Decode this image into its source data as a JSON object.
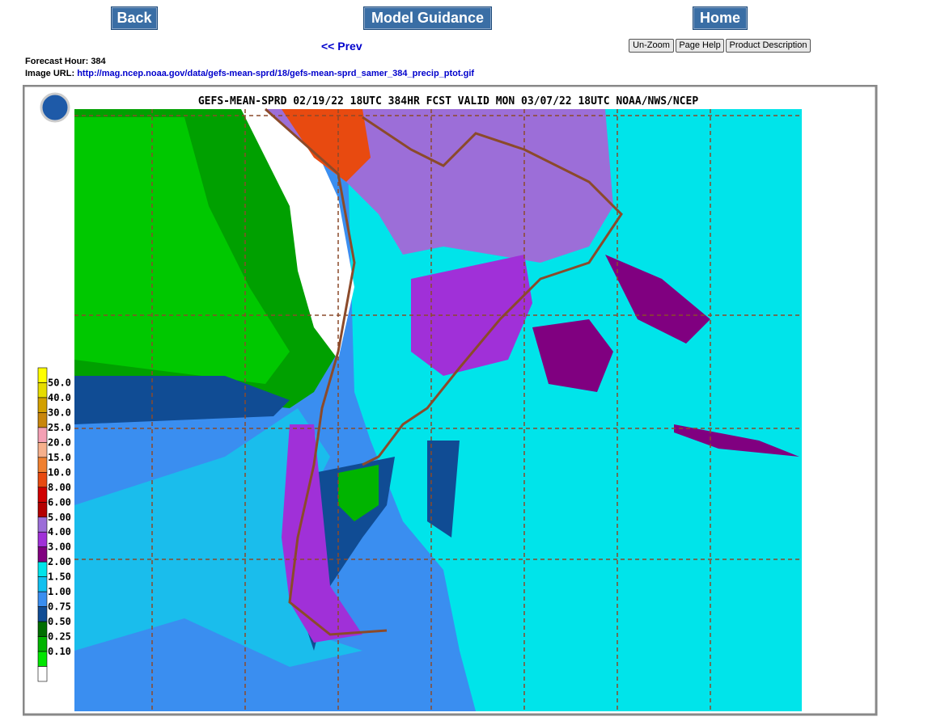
{
  "nav": {
    "back": "Back",
    "model_guidance": "Model Guidance",
    "home": "Home"
  },
  "prev": "<< Prev",
  "tools": [
    "Un-Zoom",
    "Page Help",
    "Product Description"
  ],
  "forecast_hour": {
    "label": "Forecast Hour:",
    "value": 384
  },
  "image_url": {
    "label": "Image URL:",
    "link": "http://mag.ncep.noaa.gov/data/gefs-mean-sprd/18/gefs-mean-sprd_samer_384_precip_ptot.gif"
  },
  "map": {
    "title": "GEFS-MEAN-SPRD 02/19/22 18UTC 384HR FCST VALID MON 03/07/22 18UTC NOAA/NWS/NCEP",
    "legend_labels": [
      "50.0",
      "40.0",
      "30.0",
      "25.0",
      "20.0",
      "15.0",
      "10.0",
      "8.00",
      "6.00",
      "5.00",
      "4.00",
      "3.00",
      "2.00",
      "1.50",
      "1.00",
      "0.75",
      "0.50",
      "0.25",
      "0.10"
    ],
    "legend_colors": [
      "#ffff00",
      "#e6dc00",
      "#d2a000",
      "#c8860c",
      "#f4a0b4",
      "#f6b08c",
      "#f08030",
      "#e84a10",
      "#d00000",
      "#b40000",
      "#9c6ed8",
      "#a030d8",
      "#800080",
      "#00e4ea",
      "#10c0f0",
      "#3a8ef0",
      "#104c94",
      "#006e00",
      "#00b400",
      "#00e600",
      "#ffffff"
    ]
  }
}
